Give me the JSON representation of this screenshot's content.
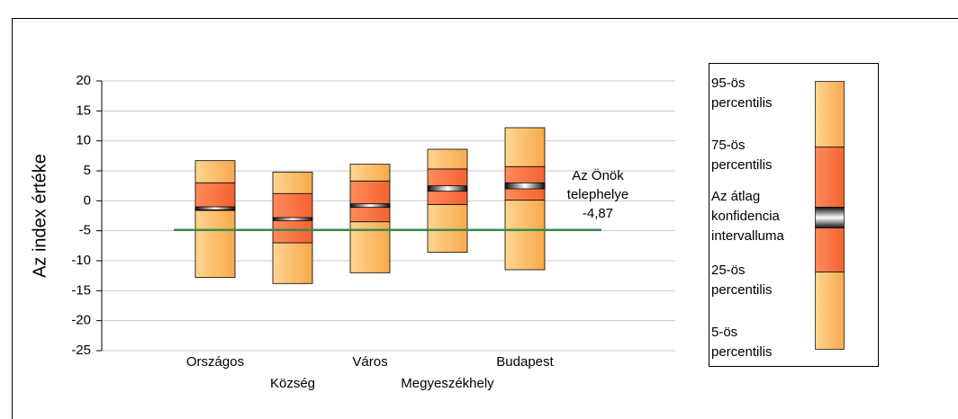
{
  "chart_data": {
    "type": "percentile-box",
    "y_label": "Az index értéke",
    "categories": [
      "Országos",
      "Község",
      "Város",
      "Megyeszékhely",
      "Budapest"
    ],
    "p5": [
      -12.8,
      -13.8,
      -12,
      -8.6,
      -11.5
    ],
    "p25": [
      -1.6,
      -7,
      -3.5,
      -0.6,
      0.1
    ],
    "ci_low": [
      -1.5,
      -3.3,
      -1.1,
      1.6,
      2
    ],
    "ci_high": [
      -1,
      -2.8,
      -0.5,
      2.5,
      3
    ],
    "p75": [
      3,
      1.2,
      3.3,
      5.3,
      5.7
    ],
    "p95": [
      6.7,
      4.8,
      6.1,
      8.6,
      12.2
    ],
    "reference": {
      "value": -4.87,
      "label": "-4,87",
      "name_lines": [
        "Az Önök",
        "telephelye"
      ]
    },
    "ylim": [
      -25,
      20
    ],
    "yticks": [
      -25,
      -20,
      -15,
      -10,
      -5,
      0,
      5,
      10,
      15,
      20
    ],
    "grid": true,
    "colors": {
      "outer": "#fbb45c",
      "inner": "#ff7040",
      "ci": "#000000",
      "reference": "#3a8a4a",
      "grid": "#c8c8c8"
    },
    "legend": [
      [
        "95-ös",
        "percentilis"
      ],
      [
        "75-ös",
        "percentilis"
      ],
      [
        "Az átlag",
        "konfidencia",
        "intervalluma"
      ],
      [
        "25-ös",
        "percentilis"
      ],
      [
        "5-ös",
        "percentilis"
      ]
    ]
  }
}
